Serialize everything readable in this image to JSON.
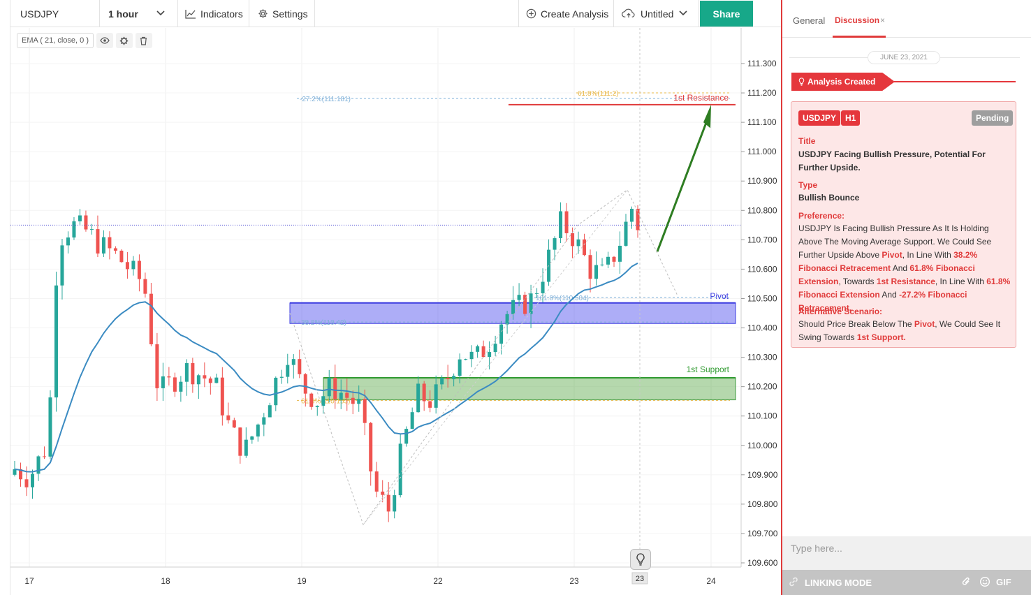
{
  "toolbar": {
    "symbol": "USDJPY",
    "interval": "1 hour",
    "indicators_label": "Indicators",
    "settings_label": "Settings",
    "create_analysis_label": "Create Analysis",
    "untitled_label": "Untitled",
    "share_label": "Share"
  },
  "ema_legend": {
    "label": "EMA ( 21, close, 0 )",
    "icons": [
      "eye-icon",
      "gear-icon",
      "trash-icon"
    ]
  },
  "chart_data": {
    "type": "candlestick",
    "symbol": "USDJPY",
    "timeframe": "H1",
    "y_ticks": [
      "111.300",
      "111.200",
      "111.100",
      "111.000",
      "110.900",
      "110.800",
      "110.700",
      "110.600",
      "110.500",
      "110.400",
      "110.300",
      "110.200",
      "110.100",
      "110.000",
      "109.900",
      "109.800",
      "109.700",
      "109.600"
    ],
    "ylim": [
      109.57,
      111.37
    ],
    "x_ticks": [
      "17",
      "18",
      "19",
      "22",
      "23",
      "24"
    ],
    "crosshair_x_label": "23",
    "last_price_line": 110.75,
    "colors": {
      "up": "#26a69a",
      "down": "#ef5350",
      "ema": "#3b8bc2"
    },
    "zones": [
      {
        "name": "Pivot",
        "from": 110.415,
        "to": 110.485,
        "color": "#5b5bf0"
      },
      {
        "name": "1st Support",
        "from": 110.155,
        "to": 110.23,
        "color": "#5aa84a"
      }
    ],
    "levels": [
      {
        "label": "1st Resistance",
        "value": 111.16,
        "color": "#e03b3b"
      }
    ],
    "fib_labels": [
      {
        "text": "-27.2%(111.181)",
        "color": "#7fb0d8"
      },
      {
        "text": "61.8%(111.2)",
        "color": "#e8b84a"
      },
      {
        "text": "161.8%(110.504)",
        "color": "#7fb0d8"
      },
      {
        "text": "38.2%(110.42)",
        "color": "#7fb0d8"
      },
      {
        "text": "61.8%(110.153)",
        "color": "#e8b84a"
      }
    ],
    "annotations": [
      "Pivot",
      "1st Support",
      "1st Resistance"
    ]
  },
  "panel": {
    "tabs": [
      "General",
      "Discussion"
    ],
    "date": "JUNE 23, 2021",
    "created_label": "Analysis Created",
    "badges": {
      "symbol": "USDJPY",
      "timeframe": "H1",
      "status": "Pending"
    },
    "title_label": "Title",
    "title_text": "USDJPY Facing Bullish Pressure, Potential For Further Upside.",
    "type_label": "Type",
    "type_text": "Bullish Bounce",
    "preference_label": "Preference:",
    "preference_segments": [
      {
        "t": "USDJPY Is Facing Bullish Pressure As It Is Holding Above The Moving Average Support. We Could See Further Upside Above ",
        "s": "plain"
      },
      {
        "t": "Pivot",
        "s": "red"
      },
      {
        "t": ", In Line With ",
        "s": "plain"
      },
      {
        "t": "38.2% Fibonacci Retracement",
        "s": "red"
      },
      {
        "t": " And ",
        "s": "plain"
      },
      {
        "t": "61.8% Fibonacci Extension",
        "s": "red"
      },
      {
        "t": ", Towards ",
        "s": "plain"
      },
      {
        "t": "1st Resistance",
        "s": "red"
      },
      {
        "t": ", In Line With ",
        "s": "plain"
      },
      {
        "t": "61.8% Fibonacci Extension",
        "s": "red"
      },
      {
        "t": " And ",
        "s": "plain"
      },
      {
        "t": "-27.2% Fibonacci Retracement.",
        "s": "red"
      }
    ],
    "alt_label": "Alternative Scenario:",
    "alt_segments": [
      {
        "t": "Should Price Break Below The ",
        "s": "plain"
      },
      {
        "t": "Pivot",
        "s": "red"
      },
      {
        "t": ", We Could See It Swing Towards ",
        "s": "plain"
      },
      {
        "t": "1st Support.",
        "s": "red"
      }
    ],
    "chat_placeholder": "Type here...",
    "linking_label": "LINKING MODE",
    "gif_label": "GIF"
  }
}
